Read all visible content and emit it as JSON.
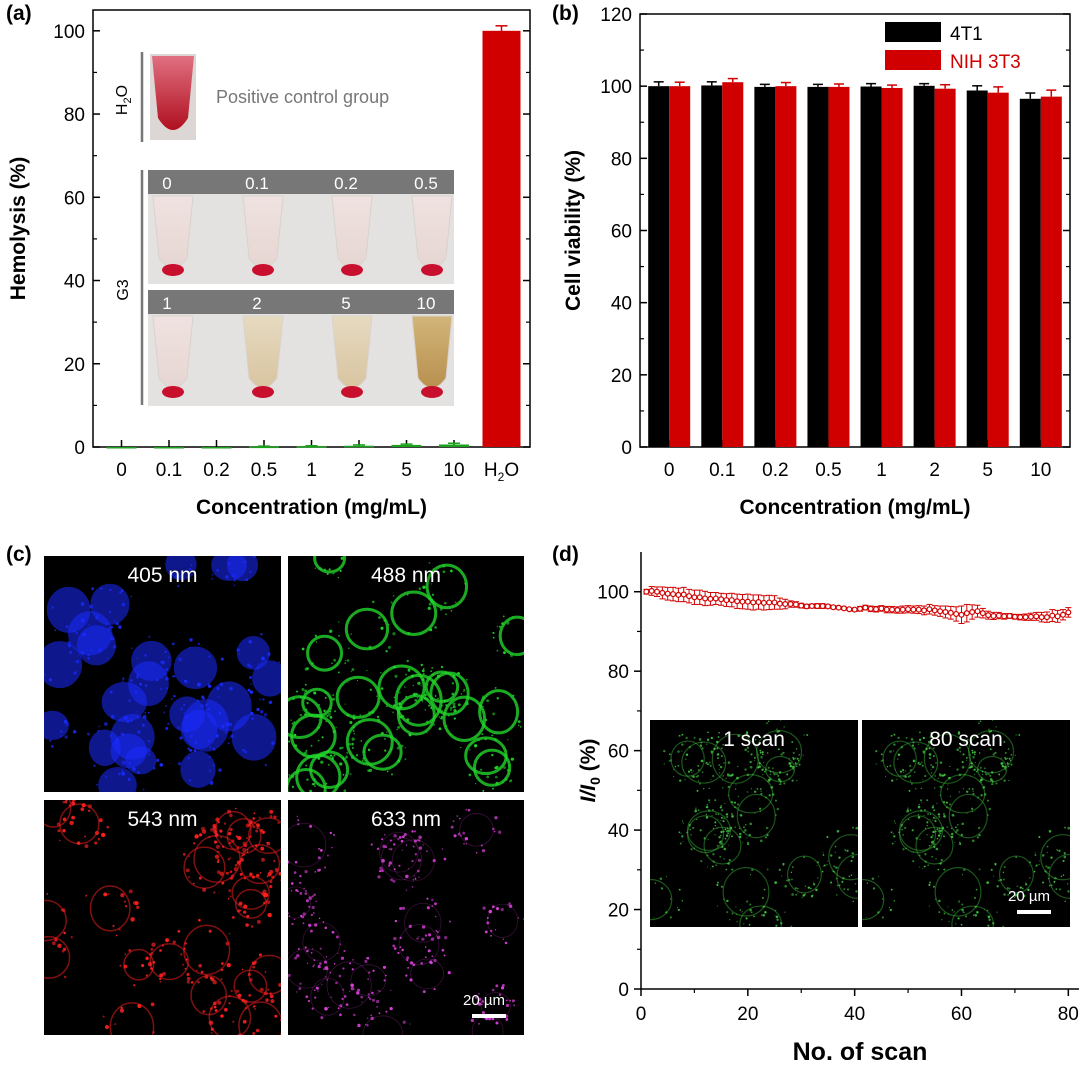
{
  "panels": {
    "a": "(a)",
    "b": "(b)",
    "c": "(c)",
    "d": "(d)"
  },
  "colors": {
    "red": "#D00000",
    "black": "#000000",
    "green": "#1BA01B",
    "gray": "#777777"
  },
  "chart_data": [
    {
      "id": "a",
      "type": "bar",
      "ylabel": "Hemolysis (%)",
      "xlabel": "Concentration (mg/mL)",
      "categories": [
        "0",
        "0.1",
        "0.2",
        "0.5",
        "1",
        "2",
        "5",
        "10",
        "H2O"
      ],
      "values": [
        0,
        0,
        0,
        0.1,
        0.2,
        0.3,
        0.5,
        0.6,
        100
      ],
      "errors": [
        0,
        0,
        0,
        0.1,
        0.1,
        0.2,
        0.2,
        0.3,
        1.2
      ],
      "ylim": [
        0,
        105
      ],
      "yticks": [
        0,
        20,
        40,
        60,
        80,
        100
      ],
      "inset": {
        "h2o_label": "H2O",
        "positive_label": "Positive control group",
        "g3_label": "G3",
        "row1": [
          "0",
          "0.1",
          "0.2",
          "0.5"
        ],
        "row2": [
          "1",
          "2",
          "5",
          "10"
        ]
      }
    },
    {
      "id": "b",
      "type": "bar",
      "ylabel": "Cell viability (%)",
      "xlabel": "Concentration (mg/mL)",
      "categories": [
        "0",
        "0.1",
        "0.2",
        "0.5",
        "1",
        "2",
        "5",
        "10"
      ],
      "series": [
        {
          "name": "4T1",
          "color": "#000000",
          "values": [
            100,
            100.2,
            99.8,
            99.8,
            99.9,
            100.1,
            98.8,
            96.5
          ],
          "errors": [
            1.2,
            1.0,
            0.7,
            0.7,
            0.8,
            0.6,
            1.3,
            1.6
          ]
        },
        {
          "name": "NIH 3T3",
          "color": "#D00000",
          "values": [
            100,
            101.1,
            100,
            99.8,
            99.5,
            99.3,
            98.2,
            97.1
          ],
          "errors": [
            1.1,
            1.0,
            1.0,
            0.8,
            0.8,
            1.1,
            1.6,
            1.8
          ]
        }
      ],
      "ylim": [
        0,
        120
      ],
      "yticks": [
        0,
        20,
        40,
        60,
        80,
        100,
        120
      ]
    },
    {
      "id": "d",
      "type": "line",
      "ylabel": "I/I0 (%)",
      "xlabel": "No. of scan",
      "xlim": [
        0,
        82
      ],
      "ylim": [
        0,
        110
      ],
      "xticks": [
        0,
        20,
        40,
        60,
        80
      ],
      "yticks": [
        0,
        20,
        40,
        60,
        80,
        100
      ],
      "x": [
        1,
        2,
        3,
        4,
        5,
        6,
        7,
        8,
        9,
        10,
        11,
        12,
        13,
        14,
        15,
        16,
        17,
        18,
        19,
        20,
        21,
        22,
        23,
        24,
        25,
        26,
        27,
        28,
        29,
        30,
        31,
        32,
        33,
        34,
        35,
        36,
        37,
        38,
        39,
        40,
        41,
        42,
        43,
        44,
        45,
        46,
        47,
        48,
        49,
        50,
        51,
        52,
        53,
        54,
        55,
        56,
        57,
        58,
        59,
        60,
        61,
        62,
        63,
        64,
        65,
        66,
        67,
        68,
        69,
        70,
        71,
        72,
        73,
        74,
        75,
        76,
        77,
        78,
        79,
        80
      ],
      "y": [
        100,
        100.2,
        100,
        99.7,
        99.5,
        99.4,
        99.2,
        99.3,
        98.9,
        98.6,
        98.6,
        98.3,
        98.2,
        98.3,
        98.1,
        97.9,
        97.9,
        97.6,
        97.5,
        97.5,
        97.3,
        97.4,
        97.2,
        97.3,
        97.3,
        97,
        96.9,
        96.9,
        96.8,
        96.5,
        96.3,
        96.4,
        96.4,
        96.4,
        96.3,
        96.1,
        96,
        95.8,
        95.6,
        95.5,
        95.7,
        96,
        95.7,
        95.6,
        95.8,
        95.5,
        95.5,
        95.4,
        95.5,
        95.6,
        95.5,
        95.5,
        95.3,
        95.6,
        95.3,
        95.1,
        94.9,
        94.7,
        94.4,
        94.2,
        94.6,
        94.9,
        95.1,
        94.6,
        94.1,
        93.9,
        94,
        93.8,
        93.9,
        93.7,
        93.6,
        93.6,
        93.7,
        93.8,
        93.6,
        93.6,
        94,
        93.8,
        94.2,
        94.8
      ],
      "errors": [
        0.6,
        1.1,
        1.2,
        1.5,
        1.6,
        1.7,
        1.7,
        1.8,
        1.7,
        1.8,
        1.8,
        1.8,
        1.6,
        1.5,
        1.5,
        1.6,
        1.7,
        1.8,
        1.8,
        1.9,
        1.9,
        1.8,
        1.8,
        1.8,
        1.7,
        1.4,
        1.2,
        0.8,
        0.7,
        0.6,
        0.5,
        0.5,
        0.6,
        0.6,
        0.4,
        0.4,
        0.3,
        0.3,
        0.3,
        0.4,
        0.6,
        0.6,
        0.7,
        0.7,
        0.7,
        0.8,
        0.8,
        0.8,
        0.9,
        0.9,
        0.9,
        1,
        1.1,
        1.2,
        1.2,
        1.3,
        1.5,
        1.6,
        1.8,
        2.2,
        2.2,
        1.8,
        1.5,
        1.2,
        1,
        0.9,
        0.8,
        0.7,
        0.6,
        0.6,
        0.7,
        0.8,
        0.9,
        1,
        1.2,
        1.3,
        1.5,
        1.5,
        1.3,
        1.2
      ],
      "inset": {
        "left_label": "1 scan",
        "right_label": "80 scan",
        "scale": "20 µm"
      }
    }
  ],
  "panel_c": {
    "labels": [
      "405 nm",
      "488 nm",
      "543 nm",
      "633 nm"
    ],
    "scale": "20 µm"
  }
}
